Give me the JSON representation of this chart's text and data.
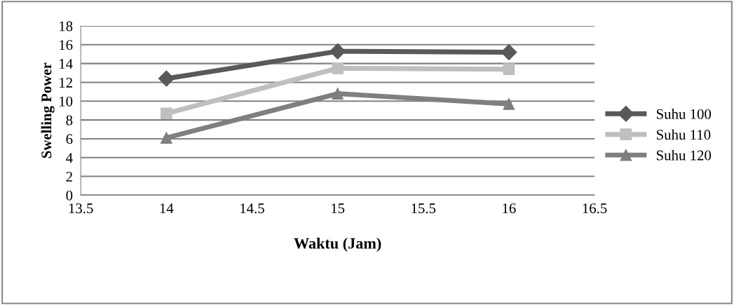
{
  "chart_data": {
    "type": "line",
    "xlabel": "Waktu (Jam)",
    "ylabel": "Swelling Power",
    "x": [
      14,
      15,
      16
    ],
    "series": [
      {
        "name": "Suhu 100",
        "color": "#595959",
        "values": [
          12.4,
          15.3,
          15.2
        ],
        "marker": "diamond"
      },
      {
        "name": "Suhu 110",
        "color": "#bfbfbf",
        "values": [
          8.7,
          13.5,
          13.4
        ],
        "marker": "square"
      },
      {
        "name": "Suhu 120",
        "color": "#7f7f7f",
        "values": [
          6.1,
          10.8,
          9.7
        ],
        "marker": "triangle"
      }
    ],
    "xlim": [
      13.5,
      16.5
    ],
    "xticks": [
      13.5,
      14,
      14.5,
      15,
      15.5,
      16,
      16.5
    ],
    "ylim": [
      0,
      18
    ],
    "yticks": [
      0,
      2,
      4,
      6,
      8,
      10,
      12,
      14,
      16,
      18
    ],
    "grid": "y",
    "legend": "right",
    "line_style": "solid"
  }
}
